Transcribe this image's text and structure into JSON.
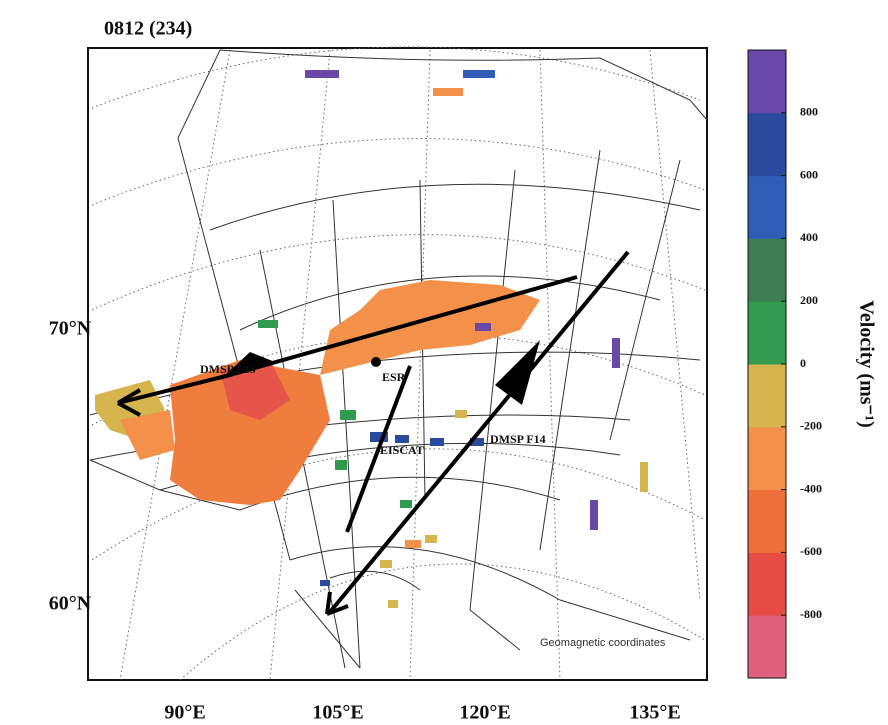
{
  "title": "0812 (234)",
  "lat_labels": [
    "70°N",
    "60°N"
  ],
  "lon_labels": [
    "90°E",
    "105°E",
    "120°E",
    "135°E"
  ],
  "annotations": {
    "dmsp_f13": "DMSP F13",
    "esr": "ESR",
    "eiscat": "EISCAT",
    "dmsp_f14": "DMSP F14",
    "coordinates": "Geomagnetic coordinates"
  },
  "colorbar": {
    "label": "Velocity (ms⁻¹)",
    "lim": [
      -1000,
      1000
    ],
    "ticks": [
      800,
      600,
      400,
      200,
      0,
      -200,
      -400,
      -600,
      -800
    ],
    "colors": [
      "#e0607e",
      "#e64c44",
      "#ef6f3a",
      "#f3904a",
      "#d6b54e",
      "#2f9a50",
      "#3c7d52",
      "#2f5cb4",
      "#2a4a9e",
      "#6a48aa"
    ]
  }
}
